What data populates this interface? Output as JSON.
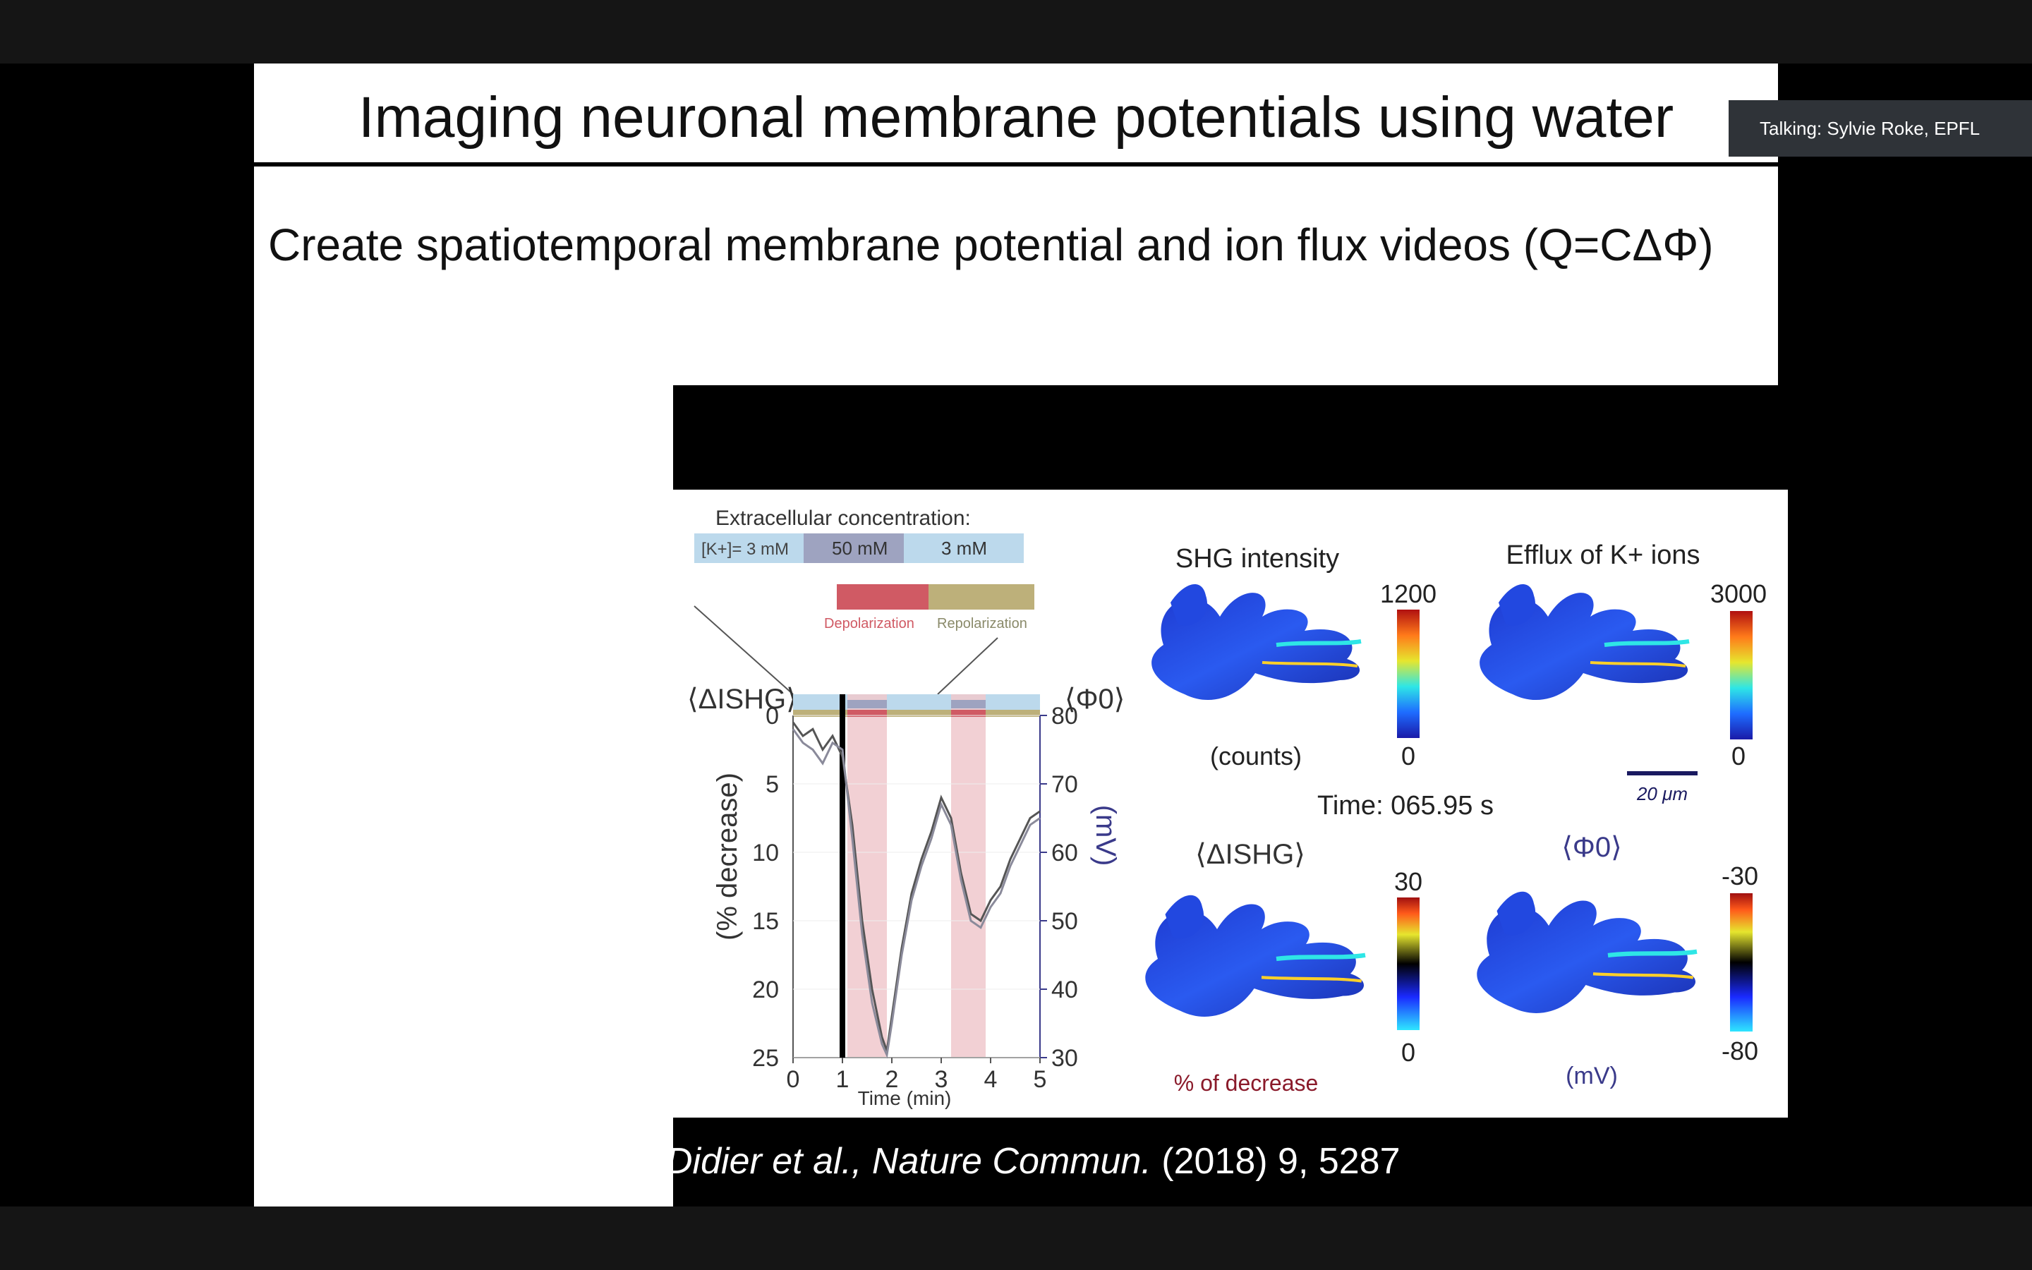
{
  "meeting": {
    "speaker_badge": "Talking: Sylvie Roke, EPFL"
  },
  "slide": {
    "title": "Imaging neuronal membrane potentials using water",
    "subtitle": "Create spatiotemporal membrane potential and ion flux videos (Q=CΔΦ)",
    "citation_italic": "Didier et al., Nature Commun.",
    "citation_rest": "(2018) 9, 5287"
  },
  "figure": {
    "conc_title": "Extracellular concentration:",
    "conc_k": "[K+]= 3 mM",
    "conc_50": "50 mM",
    "conc_3": "3 mM",
    "depol": "Depolarization",
    "repol": "Repolarization",
    "left_axis_sym": "⟨ΔISHG⟩",
    "right_axis_sym": "⟨Φ0⟩",
    "left_axis_label": "(% decrease)",
    "right_axis_label": "(mV)",
    "time_label": "Time (min)",
    "shg_title": "SHG intensity",
    "shg_max": "1200",
    "shg_min": "0",
    "shg_unit": "(counts)",
    "efflux_title": "Efflux of K+ ions",
    "efflux_max": "3000",
    "efflux_min": "0",
    "scale_bar": "20 μm",
    "time_readout": "Time: 065.95 s",
    "dshg_title": "⟨ΔISHG⟩",
    "dshg_max": "30",
    "dshg_min": "0",
    "dshg_unit": "% of decrease",
    "phi_title": "⟨Φ0⟩",
    "phi_max": "-30",
    "phi_min": "-80",
    "phi_unit": "(mV)"
  },
  "chart_data": {
    "type": "line",
    "xlabel": "Time (min)",
    "ylabel": "(% decrease)",
    "y2label": "(mV)",
    "x_ticks": [
      "0",
      "1",
      "2",
      "3",
      "4",
      "5"
    ],
    "y_ticks": [
      "0",
      "5",
      "10",
      "15",
      "20",
      "25"
    ],
    "y2_ticks": [
      "80",
      "70",
      "60",
      "50",
      "40",
      "30"
    ],
    "xlim": [
      0,
      5
    ],
    "ylim": [
      0,
      25
    ],
    "y2lim": [
      80,
      30
    ],
    "shaded_intervals": [
      [
        1.1,
        1.9
      ],
      [
        3.2,
        3.9
      ]
    ],
    "time_marker": 1.0,
    "series": [
      {
        "x": [
          0,
          0.2,
          0.4,
          0.6,
          0.8,
          1.0,
          1.2,
          1.4,
          1.6,
          1.8,
          1.9,
          2.0,
          2.2,
          2.4,
          2.6,
          2.8,
          3.0,
          3.2,
          3.4,
          3.6,
          3.8,
          4.0,
          4.2,
          4.4,
          4.6,
          4.8,
          5.0
        ],
        "y": [
          0.5,
          1.5,
          1.0,
          2.5,
          1.5,
          3.0,
          8.0,
          15.0,
          20.0,
          23.5,
          24.5,
          22.0,
          17.0,
          13.0,
          10.5,
          8.5,
          6.0,
          7.5,
          11.5,
          14.5,
          15.0,
          13.5,
          12.5,
          10.5,
          9.0,
          7.5,
          7.0
        ]
      },
      {
        "x": [
          0,
          0.2,
          0.4,
          0.6,
          0.8,
          1.0,
          1.2,
          1.4,
          1.6,
          1.8,
          1.9,
          2.0,
          2.2,
          2.4,
          2.6,
          2.8,
          3.0,
          3.2,
          3.4,
          3.6,
          3.8,
          4.0,
          4.2,
          4.4,
          4.6,
          4.8,
          5.0
        ],
        "y": [
          1.0,
          2.0,
          2.5,
          3.5,
          2.0,
          2.5,
          9.0,
          16.0,
          21.0,
          24.0,
          24.8,
          22.5,
          17.5,
          13.5,
          11.0,
          9.0,
          6.5,
          8.0,
          12.0,
          15.0,
          15.5,
          14.0,
          13.0,
          11.0,
          9.5,
          8.0,
          7.5
        ]
      }
    ]
  }
}
